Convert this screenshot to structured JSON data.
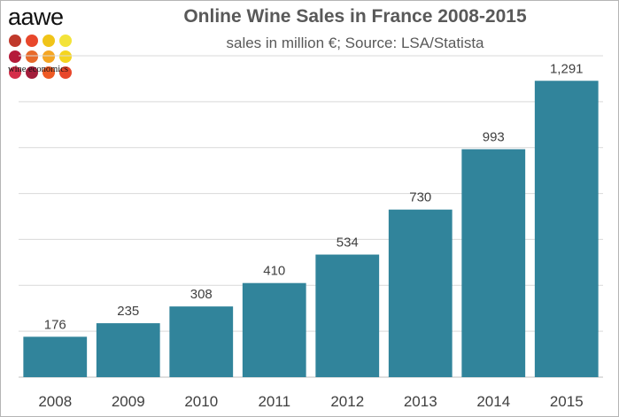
{
  "logo": {
    "brand": "aawe",
    "tagline": "wine economics",
    "dot_colors": [
      "#c0392b",
      "#e8472b",
      "#f0c419",
      "#f3e33a",
      "#b51b3a",
      "#e86a2b",
      "#f5a623",
      "#f5d51f",
      "#d42f4a",
      "#a31d3b",
      "#ee5a24",
      "#e8472b"
    ]
  },
  "chart_data": {
    "type": "bar",
    "title": "Online Wine Sales in France 2008-2015",
    "subtitle": "sales in million €; Source: LSA/Statista",
    "categories": [
      "2008",
      "2009",
      "2010",
      "2011",
      "2012",
      "2013",
      "2014",
      "2015"
    ],
    "values": [
      176,
      235,
      308,
      410,
      534,
      730,
      993,
      1291
    ],
    "value_labels": [
      "176",
      "235",
      "308",
      "410",
      "534",
      "730",
      "993",
      "1,291"
    ],
    "ylim": [
      0,
      1400
    ],
    "y_gridlines": [
      200,
      400,
      600,
      800,
      1000,
      1200,
      1400
    ],
    "grid": true,
    "legend": "none",
    "bar_color": "#31849b",
    "xlabel": "",
    "ylabel": ""
  }
}
